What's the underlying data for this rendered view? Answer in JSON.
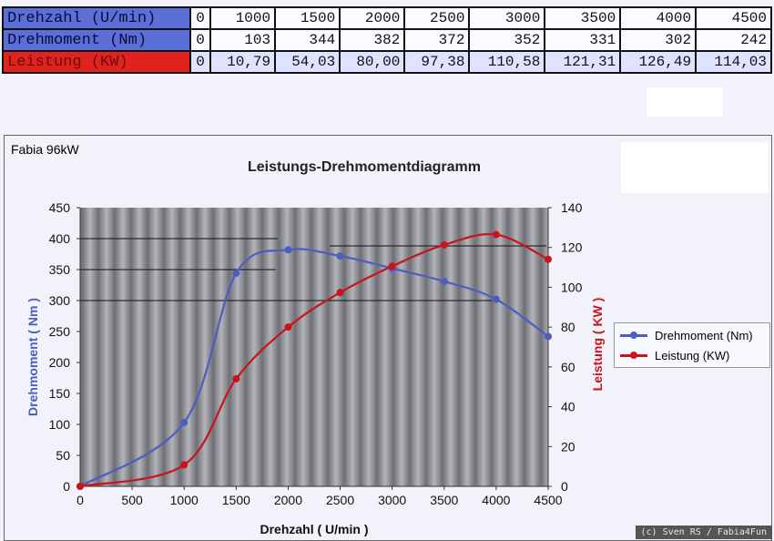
{
  "table": {
    "rows": [
      {
        "label": "Drehzahl (U/min)",
        "values": [
          "0",
          "1000",
          "1500",
          "2000",
          "2500",
          "3000",
          "3500",
          "4000",
          "4500"
        ]
      },
      {
        "label": "Drehmoment (Nm)",
        "values": [
          "0",
          "103",
          "344",
          "382",
          "372",
          "352",
          "331",
          "302",
          "242"
        ]
      },
      {
        "label": "Leistung (KW)",
        "values": [
          "0",
          "10,79",
          "54,03",
          "80,00",
          "97,38",
          "110,58",
          "121,31",
          "126,49",
          "114,03"
        ]
      }
    ]
  },
  "subtitle": "Fabia 96kW",
  "credit": "(c) Sven RS / Fabia4Fun",
  "colors": {
    "torque": "#4a5fbf",
    "power": "#c8141a",
    "plot_bg": "#8e8e96"
  },
  "chart_data": {
    "type": "line",
    "title": "Leistungs-Drehmomentdiagramm",
    "xlabel": "Drehzahl ( U/min )",
    "ylabel": "Drehmoment ( Nm )",
    "y2label": "Leistung ( KW )",
    "x": [
      0,
      1000,
      1500,
      2000,
      2500,
      3000,
      3500,
      4000,
      4500
    ],
    "xlim": [
      0,
      4500
    ],
    "ylim": [
      0,
      450
    ],
    "y2lim": [
      0,
      140
    ],
    "xticks": [
      "0",
      "500",
      "1000",
      "1500",
      "2000",
      "2500",
      "3000",
      "3500",
      "4000",
      "4500"
    ],
    "yticks": [
      "0",
      "50",
      "100",
      "150",
      "200",
      "250",
      "300",
      "350",
      "400",
      "450"
    ],
    "y2ticks": [
      "0",
      "20",
      "40",
      "60",
      "80",
      "100",
      "120",
      "140"
    ],
    "legend": "right",
    "series": [
      {
        "name": "Drehmoment (Nm)",
        "axis": "left",
        "values": [
          0,
          103,
          344,
          382,
          372,
          352,
          331,
          302,
          242
        ]
      },
      {
        "name": "Leistung (KW)",
        "axis": "right",
        "values": [
          0,
          10.79,
          54.03,
          80.0,
          97.38,
          110.58,
          121.31,
          126.49,
          114.03
        ]
      }
    ]
  }
}
